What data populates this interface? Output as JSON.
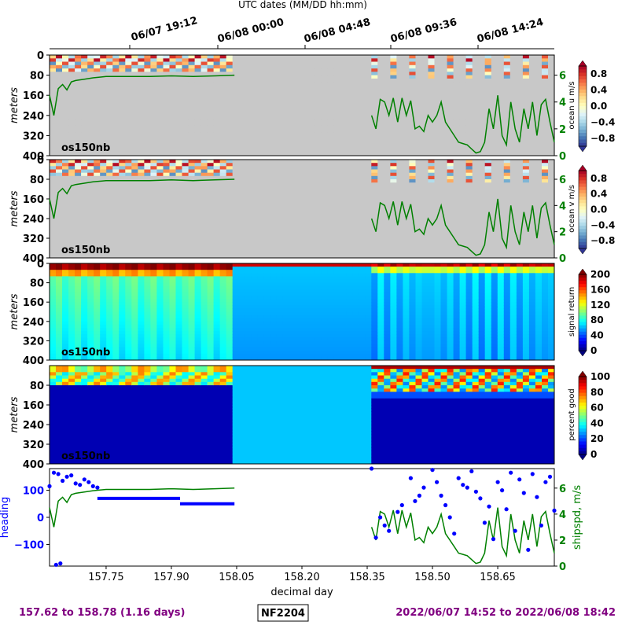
{
  "figure": {
    "top_axis_title": "UTC dates (MM/DD hh:mm)",
    "top_ticks": [
      "06/07 19:12",
      "06/08 00:00",
      "06/08 04:48",
      "06/08 09:36",
      "06/08 14:24"
    ],
    "footer": {
      "day_range": "157.62 to 158.78 (1.16 days)",
      "cruise_id": "NF2204",
      "date_range": "2022/06/07 14:52 to 2022/06/08 18:42"
    }
  },
  "chart_data": [
    {
      "type": "heatmap",
      "ylabel": "meters",
      "yticks": [
        "0",
        "80",
        "160",
        "240",
        "320",
        "400"
      ],
      "instrument_label": "os150nb",
      "colorbar": {
        "label": "ocean u m/s",
        "ticks": [
          "0.8",
          "0.4",
          "0.0",
          "−0.4",
          "−0.8"
        ],
        "range": [
          -1.0,
          1.0
        ],
        "colormap": "RdYlBu_r"
      },
      "right_axis": {
        "ticks": [
          "6",
          "4",
          "2",
          "0"
        ],
        "color": "#008000"
      },
      "xlim": [
        157.62,
        158.78
      ],
      "ylim": [
        400,
        0
      ]
    },
    {
      "type": "heatmap",
      "ylabel": "meters",
      "yticks": [
        "0",
        "80",
        "160",
        "240",
        "320",
        "400"
      ],
      "instrument_label": "os150nb",
      "colorbar": {
        "label": "ocean v m/s",
        "ticks": [
          "0.8",
          "0.4",
          "0.0",
          "−0.4",
          "−0.8"
        ],
        "range": [
          -1.0,
          1.0
        ],
        "colormap": "RdYlBu_r"
      },
      "right_axis": {
        "ticks": [
          "6",
          "4",
          "2",
          "0"
        ],
        "color": "#008000"
      },
      "xlim": [
        157.62,
        158.78
      ],
      "ylim": [
        400,
        0
      ]
    },
    {
      "type": "heatmap",
      "ylabel": "meters",
      "yticks": [
        "0",
        "80",
        "160",
        "240",
        "320",
        "400"
      ],
      "instrument_label": "os150nb",
      "colorbar": {
        "label": "signal return",
        "ticks": [
          "200",
          "160",
          "120",
          "80",
          "40",
          "0"
        ],
        "range": [
          0,
          200
        ],
        "colormap": "jet"
      }
    },
    {
      "type": "heatmap",
      "ylabel": "meters",
      "yticks": [
        "80",
        "160",
        "240",
        "320",
        "400"
      ],
      "instrument_label": "os150nb",
      "colorbar": {
        "label": "percent good",
        "ticks": [
          "100",
          "80",
          "60",
          "40",
          "20",
          "0"
        ],
        "range": [
          0,
          100
        ],
        "colormap": "jet"
      }
    },
    {
      "type": "scatter",
      "xlabel": "decimal day",
      "xticks": [
        "157.75",
        "157.90",
        "158.05",
        "158.20",
        "158.35",
        "158.50",
        "158.65"
      ],
      "xtick_values": [
        157.75,
        157.9,
        158.05,
        158.2,
        158.35,
        158.5,
        158.65
      ],
      "xlim": [
        157.62,
        158.78
      ],
      "ylabel_left": "heading",
      "yticks_left": [
        "100",
        "0",
        "−100"
      ],
      "ylim_left": [
        -180,
        180
      ],
      "ylabel_right": "shipspd, m/s",
      "yticks_right": [
        "6",
        "4",
        "2",
        "0"
      ],
      "ylim_right": [
        0,
        7.5
      ],
      "colors": {
        "heading": "#0000ff",
        "speed": "#008000"
      },
      "heading_points": [
        [
          157.62,
          115
        ],
        [
          157.63,
          165
        ],
        [
          157.64,
          160
        ],
        [
          157.65,
          135
        ],
        [
          157.66,
          150
        ],
        [
          157.67,
          155
        ],
        [
          157.68,
          125
        ],
        [
          157.69,
          120
        ],
        [
          157.7,
          140
        ],
        [
          157.71,
          130
        ],
        [
          157.72,
          115
        ],
        [
          157.73,
          110
        ],
        [
          157.635,
          -175
        ],
        [
          157.645,
          -170
        ],
        [
          158.36,
          180
        ],
        [
          158.37,
          -75
        ],
        [
          158.38,
          0
        ],
        [
          158.39,
          -30
        ],
        [
          158.4,
          -50
        ],
        [
          158.42,
          20
        ],
        [
          158.43,
          45
        ],
        [
          158.45,
          145
        ],
        [
          158.46,
          60
        ],
        [
          158.47,
          80
        ],
        [
          158.48,
          110
        ],
        [
          158.5,
          175
        ],
        [
          158.51,
          130
        ],
        [
          158.52,
          80
        ],
        [
          158.53,
          45
        ],
        [
          158.54,
          0
        ],
        [
          158.55,
          -60
        ],
        [
          158.56,
          145
        ],
        [
          158.57,
          120
        ],
        [
          158.58,
          110
        ],
        [
          158.59,
          170
        ],
        [
          158.6,
          95
        ],
        [
          158.61,
          70
        ],
        [
          158.62,
          -20
        ],
        [
          158.63,
          40
        ],
        [
          158.64,
          -80
        ],
        [
          158.65,
          130
        ],
        [
          158.66,
          100
        ],
        [
          158.67,
          30
        ],
        [
          158.68,
          165
        ],
        [
          158.69,
          -50
        ],
        [
          158.7,
          140
        ],
        [
          158.71,
          90
        ],
        [
          158.72,
          -120
        ],
        [
          158.73,
          160
        ],
        [
          158.74,
          75
        ],
        [
          158.75,
          -30
        ],
        [
          158.76,
          130
        ],
        [
          158.77,
          150
        ],
        [
          158.78,
          25
        ]
      ],
      "speed_points": [
        [
          157.62,
          4.5
        ],
        [
          157.63,
          3.0
        ],
        [
          157.64,
          5.0
        ],
        [
          157.65,
          5.3
        ],
        [
          157.66,
          4.9
        ],
        [
          157.67,
          5.5
        ],
        [
          157.68,
          5.6
        ],
        [
          157.7,
          5.7
        ],
        [
          157.72,
          5.8
        ],
        [
          157.75,
          5.9
        ],
        [
          157.8,
          5.9
        ],
        [
          157.85,
          5.9
        ],
        [
          157.9,
          5.95
        ],
        [
          157.95,
          5.9
        ],
        [
          158.0,
          5.95
        ],
        [
          158.045,
          6.0
        ],
        [
          158.36,
          3.0
        ],
        [
          158.37,
          2.0
        ],
        [
          158.38,
          4.2
        ],
        [
          158.39,
          4.0
        ],
        [
          158.4,
          3.0
        ],
        [
          158.41,
          4.3
        ],
        [
          158.42,
          2.5
        ],
        [
          158.43,
          4.3
        ],
        [
          158.44,
          3.0
        ],
        [
          158.45,
          4.1
        ],
        [
          158.46,
          2.0
        ],
        [
          158.47,
          2.2
        ],
        [
          158.48,
          1.8
        ],
        [
          158.49,
          3.0
        ],
        [
          158.5,
          2.5
        ],
        [
          158.51,
          3.0
        ],
        [
          158.52,
          4.0
        ],
        [
          158.53,
          2.5
        ],
        [
          158.54,
          2.0
        ],
        [
          158.55,
          1.5
        ],
        [
          158.56,
          1.0
        ],
        [
          158.57,
          0.9
        ],
        [
          158.58,
          0.8
        ],
        [
          158.59,
          0.5
        ],
        [
          158.6,
          0.2
        ],
        [
          158.61,
          0.3
        ],
        [
          158.62,
          1.0
        ],
        [
          158.63,
          3.5
        ],
        [
          158.64,
          2.0
        ],
        [
          158.65,
          4.5
        ],
        [
          158.66,
          1.5
        ],
        [
          158.67,
          0.8
        ],
        [
          158.68,
          4.0
        ],
        [
          158.69,
          2.0
        ],
        [
          158.7,
          1.0
        ],
        [
          158.71,
          3.5
        ],
        [
          158.72,
          2.0
        ],
        [
          158.73,
          4.0
        ],
        [
          158.74,
          1.5
        ],
        [
          158.75,
          3.8
        ],
        [
          158.76,
          4.2
        ],
        [
          158.77,
          2.5
        ],
        [
          158.78,
          1.0
        ]
      ]
    }
  ]
}
